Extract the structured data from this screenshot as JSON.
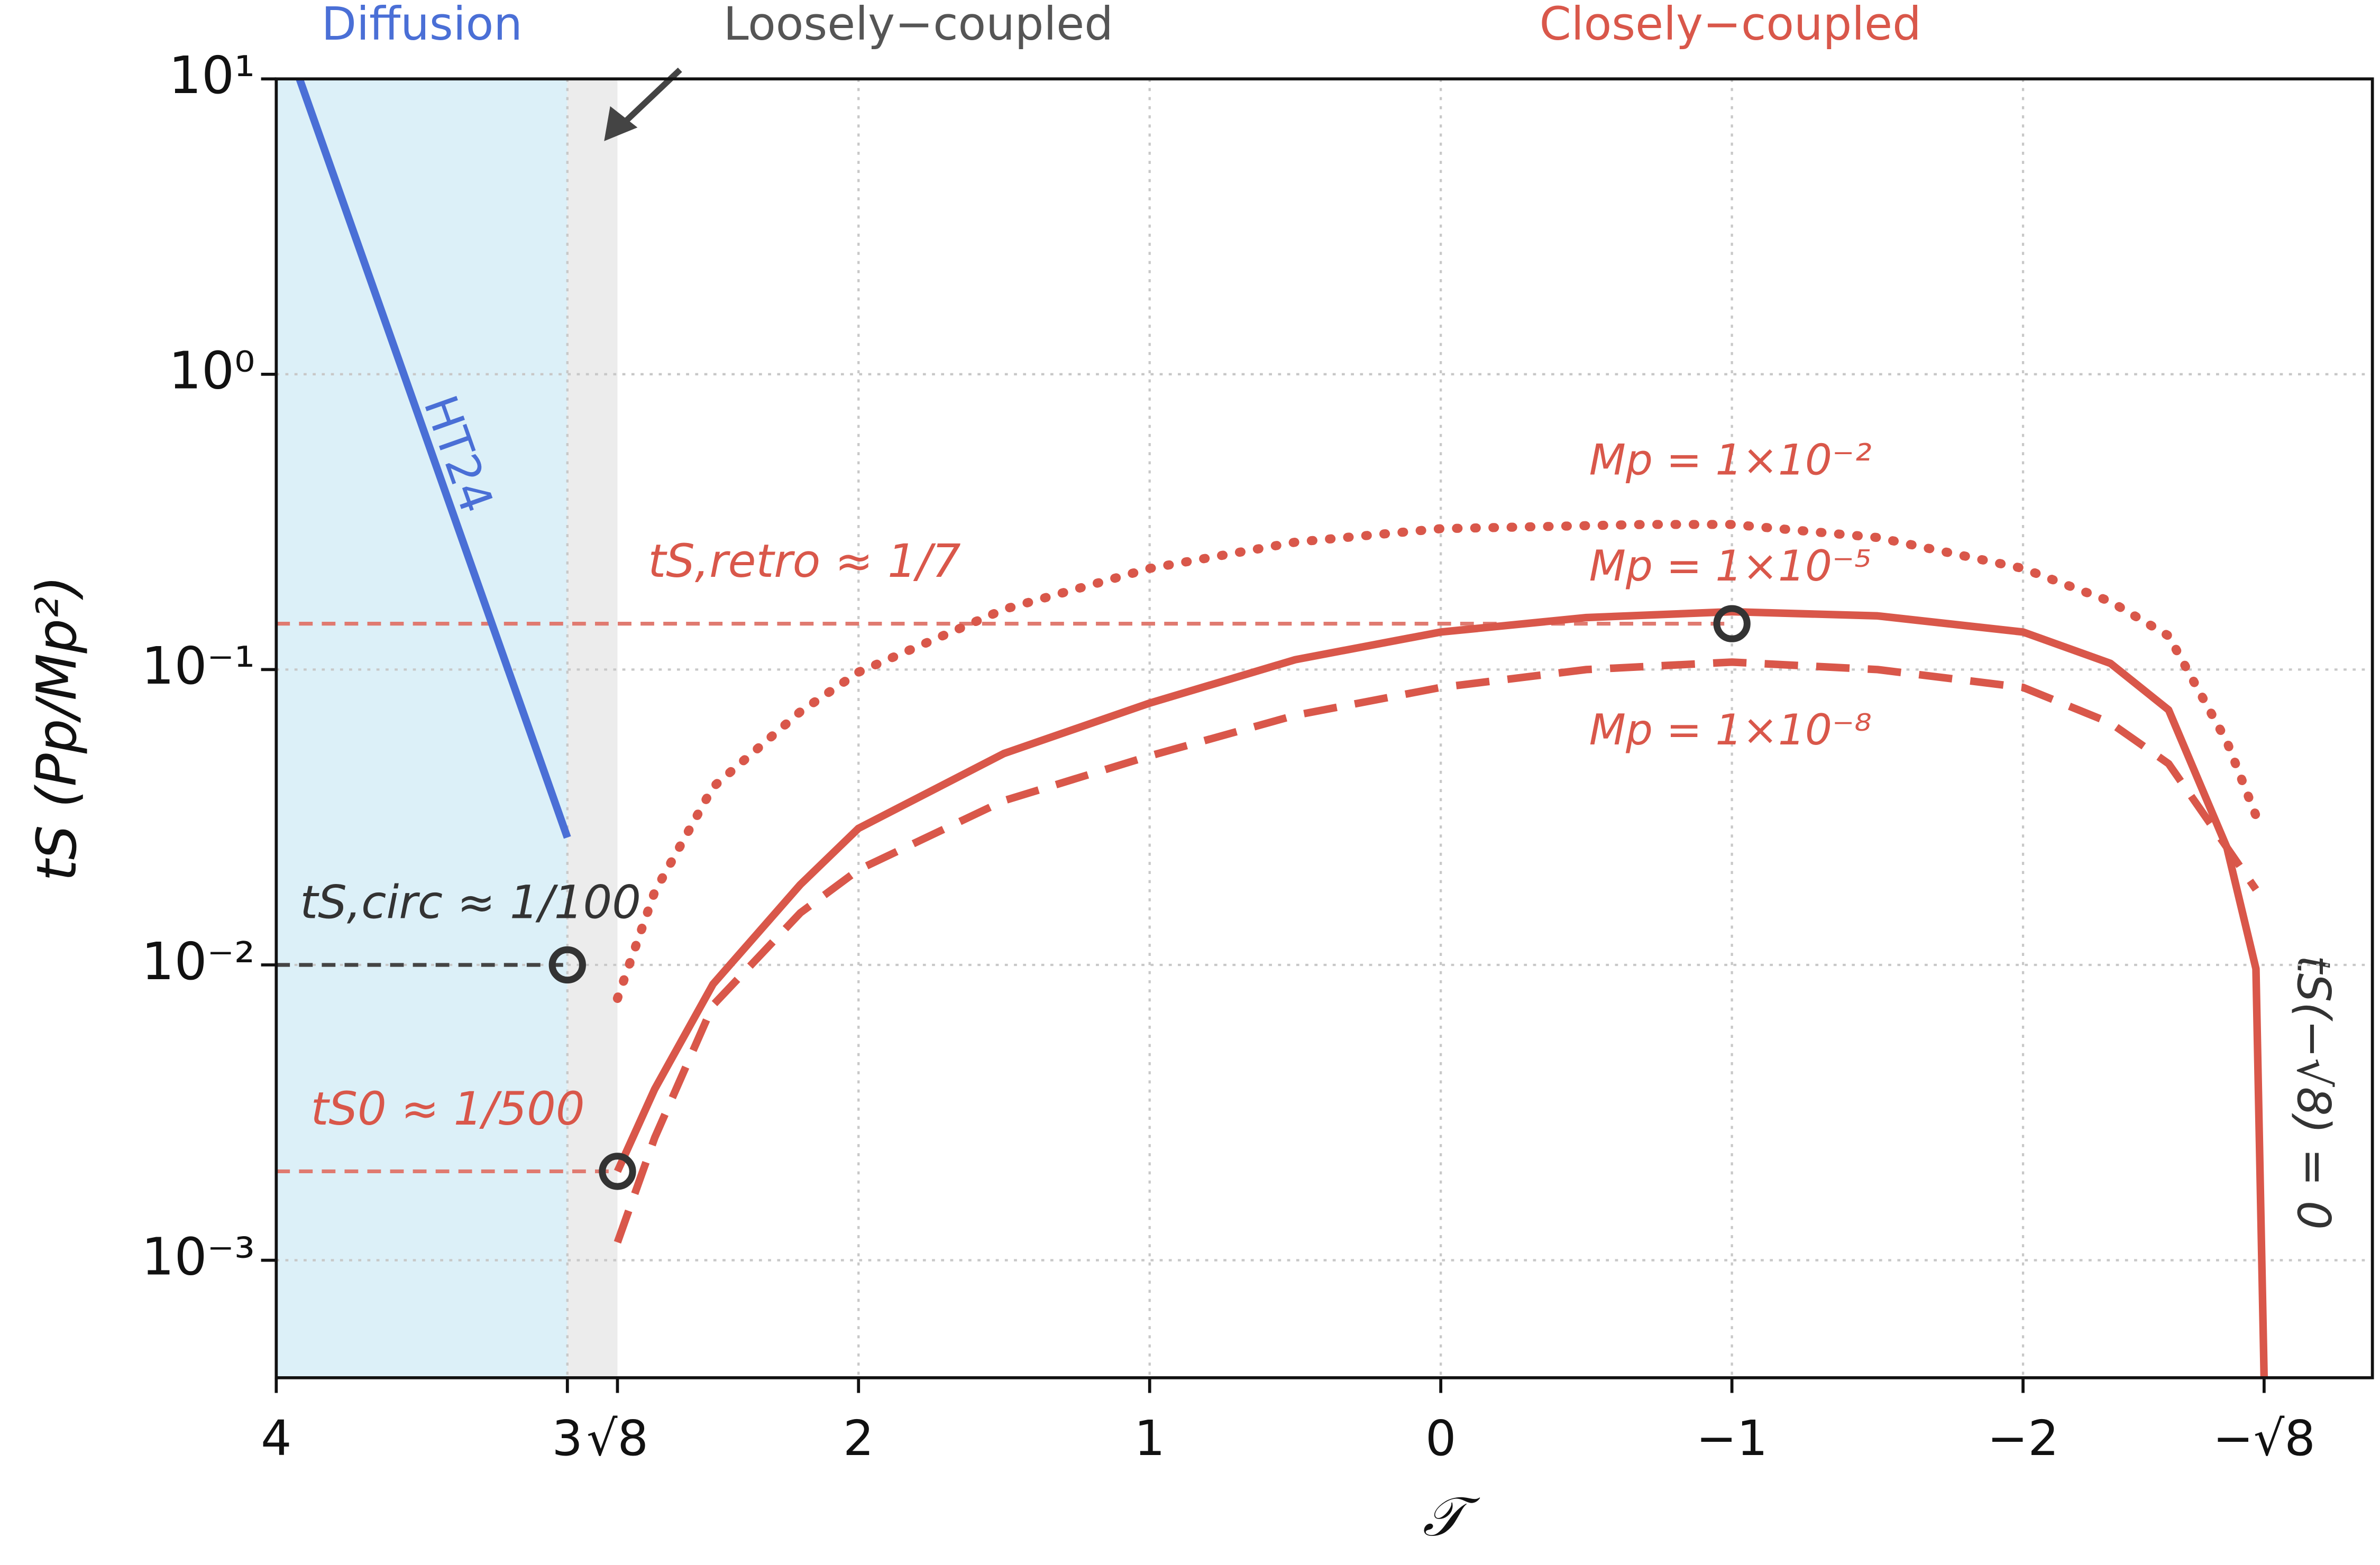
{
  "chart_data": {
    "type": "line",
    "xlabel": "𝒯",
    "ylabel": "tS  (Pp/Mp²)",
    "xlim": [
      4.0,
      -3.2
    ],
    "ylim": [
      0.0004,
      10
    ],
    "ylog": true,
    "grid": true,
    "xticks": [
      4,
      3,
      {
        "value": 2.828,
        "label": "√8"
      },
      2,
      1,
      0,
      {
        "value": -1,
        "label": "−1"
      },
      {
        "value": -2,
        "label": "−2"
      },
      {
        "value": -2.828,
        "label": "−√8"
      }
    ],
    "yticks": [
      {
        "value": 10,
        "label": "10¹"
      },
      {
        "value": 1,
        "label": "10⁰"
      },
      {
        "value": 0.1,
        "label": "10⁻¹"
      },
      {
        "value": 0.01,
        "label": "10⁻²"
      },
      {
        "value": 0.001,
        "label": "10⁻³"
      }
    ],
    "regions": [
      {
        "name": "Diffusion",
        "xrange": [
          4,
          3
        ],
        "color": "#dcf0f8",
        "text_color": "#4a6fd6"
      },
      {
        "name": "Loosely−coupled",
        "xrange": [
          3,
          2.828
        ],
        "color": "#ececec",
        "text_color": "#555555"
      },
      {
        "name": "Closely−coupled",
        "text_color": "#d9574a"
      }
    ],
    "series": [
      {
        "name": "HT24",
        "color": "#4a6fd6",
        "style": "solid",
        "x": [
          3.92,
          3.0
        ],
        "values": [
          10,
          0.027
        ]
      },
      {
        "name": "Mp = 1×10⁻²",
        "color": "#d9574a",
        "style": "dotted",
        "x": [
          2.828,
          2.7,
          2.5,
          2.2,
          2,
          1.5,
          1,
          0.5,
          0,
          -0.7,
          -1,
          -1.5,
          -2,
          -2.3,
          -2.5,
          -2.7,
          -2.8
        ],
        "values": [
          0.0077,
          0.0177,
          0.04,
          0.072,
          0.098,
          0.16,
          0.22,
          0.27,
          0.3,
          0.31,
          0.31,
          0.28,
          0.22,
          0.17,
          0.13,
          0.057,
          0.032
        ]
      },
      {
        "name": "Mp = 1×10⁻⁵",
        "color": "#d9574a",
        "style": "solid",
        "x": [
          2.828,
          2.7,
          2.5,
          2.2,
          2,
          1.5,
          1,
          0.5,
          0,
          -0.5,
          -1,
          -1.5,
          -2,
          -2.3,
          -2.5,
          -2.7,
          -2.8,
          -2.828
        ],
        "values": [
          0.002,
          0.0038,
          0.0086,
          0.0187,
          0.029,
          0.052,
          0.077,
          0.108,
          0.134,
          0.15,
          0.157,
          0.152,
          0.134,
          0.105,
          0.073,
          0.025,
          0.0097,
          0.0004
        ]
      },
      {
        "name": "Mp = 1×10⁻⁸",
        "color": "#d9574a",
        "style": "dashed",
        "x": [
          2.828,
          2.7,
          2.5,
          2.2,
          2,
          1.5,
          1,
          0.5,
          0,
          -0.5,
          -1,
          -1.5,
          -2,
          -2.3,
          -2.5,
          -2.7,
          -2.8
        ],
        "values": [
          0.00115,
          0.0026,
          0.0073,
          0.015,
          0.021,
          0.036,
          0.051,
          0.07,
          0.087,
          0.1,
          0.106,
          0.1,
          0.087,
          0.066,
          0.048,
          0.025,
          0.018
        ]
      }
    ],
    "hlines": [
      {
        "label": "tS,retro ≈ 1/7",
        "value": 0.143,
        "xmax": -1,
        "color": "#e07a70"
      },
      {
        "label": "tS,circ ≈ 1/100",
        "value": 0.01,
        "xmax": 3.0,
        "color": "#444444"
      },
      {
        "label": "tS0 ≈ 1/500",
        "value": 0.002,
        "xmax": 2.828,
        "color": "#e07a70"
      }
    ],
    "points": [
      {
        "x": 3.0,
        "y": 0.01
      },
      {
        "x": 2.828,
        "y": 0.002
      },
      {
        "x": -1,
        "y": 0.143
      }
    ],
    "annotation": "tS(−√8) = 0"
  }
}
